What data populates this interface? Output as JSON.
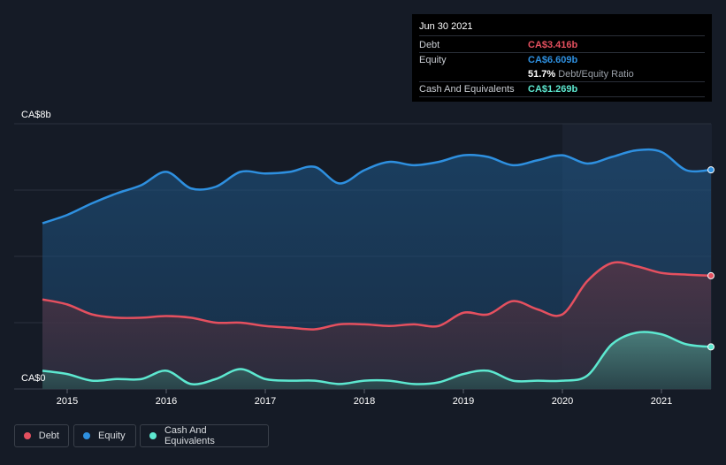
{
  "tooltip": {
    "date": "Jun 30 2021",
    "debt_label": "Debt",
    "debt_value": "CA$3.416b",
    "equity_label": "Equity",
    "equity_value": "CA$6.609b",
    "ratio_value": "51.7%",
    "ratio_label": "Debt/Equity Ratio",
    "cash_label": "Cash And Equivalents",
    "cash_value": "CA$1.269b"
  },
  "legend": {
    "debt": "Debt",
    "equity": "Equity",
    "cash": "Cash And Equivalents"
  },
  "colors": {
    "debt": "#e5505f",
    "equity": "#2e90e0",
    "cash": "#5de8d0",
    "background": "#151b26"
  },
  "chart_data": {
    "type": "area",
    "ytick_labels": [
      "CA$8b",
      "CA$0"
    ],
    "ylim": [
      0,
      8
    ],
    "xlim": [
      2014.75,
      2021.5
    ],
    "x_ticks": [
      2015,
      2016,
      2017,
      2018,
      2019,
      2020,
      2021
    ],
    "x_tick_labels": [
      "2015",
      "2016",
      "2017",
      "2018",
      "2019",
      "2020",
      "2021"
    ],
    "grid": true,
    "legend_position": "bottom-left",
    "series": [
      {
        "name": "Equity",
        "key": "equity",
        "points": [
          [
            2014.75,
            5.0
          ],
          [
            2015.0,
            5.25
          ],
          [
            2015.25,
            5.6
          ],
          [
            2015.5,
            5.9
          ],
          [
            2015.75,
            6.15
          ],
          [
            2016.0,
            6.55
          ],
          [
            2016.25,
            6.05
          ],
          [
            2016.5,
            6.1
          ],
          [
            2016.75,
            6.55
          ],
          [
            2017.0,
            6.5
          ],
          [
            2017.25,
            6.55
          ],
          [
            2017.5,
            6.7
          ],
          [
            2017.75,
            6.2
          ],
          [
            2018.0,
            6.6
          ],
          [
            2018.25,
            6.85
          ],
          [
            2018.5,
            6.75
          ],
          [
            2018.75,
            6.85
          ],
          [
            2019.0,
            7.05
          ],
          [
            2019.25,
            7.0
          ],
          [
            2019.5,
            6.75
          ],
          [
            2019.75,
            6.9
          ],
          [
            2020.0,
            7.05
          ],
          [
            2020.25,
            6.8
          ],
          [
            2020.5,
            7.0
          ],
          [
            2020.75,
            7.2
          ],
          [
            2021.0,
            7.15
          ],
          [
            2021.25,
            6.6
          ],
          [
            2021.5,
            6.609
          ]
        ]
      },
      {
        "name": "Debt",
        "key": "debt",
        "points": [
          [
            2014.75,
            2.7
          ],
          [
            2015.0,
            2.55
          ],
          [
            2015.25,
            2.25
          ],
          [
            2015.5,
            2.15
          ],
          [
            2015.75,
            2.15
          ],
          [
            2016.0,
            2.2
          ],
          [
            2016.25,
            2.15
          ],
          [
            2016.5,
            2.0
          ],
          [
            2016.75,
            2.0
          ],
          [
            2017.0,
            1.9
          ],
          [
            2017.25,
            1.85
          ],
          [
            2017.5,
            1.8
          ],
          [
            2017.75,
            1.95
          ],
          [
            2018.0,
            1.95
          ],
          [
            2018.25,
            1.9
          ],
          [
            2018.5,
            1.95
          ],
          [
            2018.75,
            1.9
          ],
          [
            2019.0,
            2.3
          ],
          [
            2019.25,
            2.25
          ],
          [
            2019.5,
            2.65
          ],
          [
            2019.75,
            2.4
          ],
          [
            2020.0,
            2.25
          ],
          [
            2020.25,
            3.25
          ],
          [
            2020.5,
            3.8
          ],
          [
            2020.75,
            3.7
          ],
          [
            2021.0,
            3.5
          ],
          [
            2021.25,
            3.45
          ],
          [
            2021.5,
            3.416
          ]
        ]
      },
      {
        "name": "Cash And Equivalents",
        "key": "cash",
        "points": [
          [
            2014.75,
            0.55
          ],
          [
            2015.0,
            0.45
          ],
          [
            2015.25,
            0.25
          ],
          [
            2015.5,
            0.3
          ],
          [
            2015.75,
            0.3
          ],
          [
            2016.0,
            0.55
          ],
          [
            2016.25,
            0.15
          ],
          [
            2016.5,
            0.3
          ],
          [
            2016.75,
            0.6
          ],
          [
            2017.0,
            0.3
          ],
          [
            2017.25,
            0.25
          ],
          [
            2017.5,
            0.25
          ],
          [
            2017.75,
            0.15
          ],
          [
            2018.0,
            0.25
          ],
          [
            2018.25,
            0.25
          ],
          [
            2018.5,
            0.15
          ],
          [
            2018.75,
            0.2
          ],
          [
            2019.0,
            0.45
          ],
          [
            2019.25,
            0.55
          ],
          [
            2019.5,
            0.25
          ],
          [
            2019.75,
            0.25
          ],
          [
            2020.0,
            0.25
          ],
          [
            2020.25,
            0.4
          ],
          [
            2020.5,
            1.35
          ],
          [
            2020.75,
            1.7
          ],
          [
            2021.0,
            1.65
          ],
          [
            2021.25,
            1.35
          ],
          [
            2021.5,
            1.269
          ]
        ]
      }
    ]
  }
}
